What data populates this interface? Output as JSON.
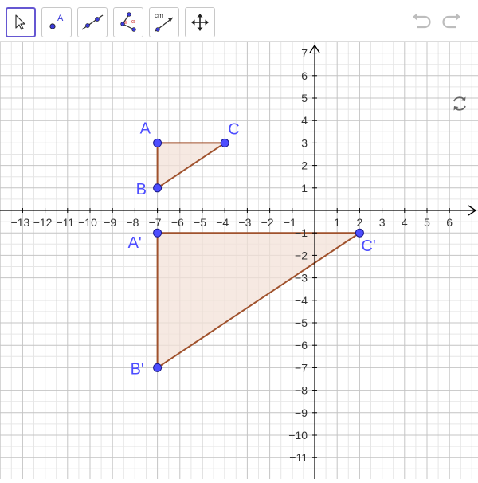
{
  "toolbar": {
    "tools": [
      {
        "icon": "move-arrow-icon",
        "active": true
      },
      {
        "icon": "point-icon",
        "label": "A"
      },
      {
        "icon": "line-icon"
      },
      {
        "icon": "angle-icon",
        "label": "α"
      },
      {
        "icon": "distance-icon",
        "label": "cm"
      },
      {
        "icon": "move-graphics-view-icon"
      }
    ],
    "undo_icon": "undo-icon",
    "redo_icon": "redo-icon"
  },
  "graph": {
    "x_tick_labels": [
      "−13",
      "−12",
      "−11",
      "−10",
      "−9",
      "−8",
      "−7",
      "−6",
      "−5",
      "−4",
      "−3",
      "−2",
      "−1",
      "1",
      "2",
      "3",
      "4",
      "5",
      "6"
    ],
    "y_tick_labels": [
      "7",
      "6",
      "5",
      "4",
      "3",
      "2",
      "1",
      "−1",
      "−2",
      "−3",
      "−4",
      "−5",
      "−6",
      "−7",
      "−8",
      "−9",
      "−10",
      "−11"
    ],
    "colors": {
      "point": "#4d4dff",
      "polygon_stroke": "#a0522d",
      "polygon_fill": "#f3e2d8",
      "label": "#4d4dff",
      "grid": "#c0c0c0",
      "axis": "#000000"
    },
    "points": [
      {
        "label": "A",
        "x": -7,
        "y": 3
      },
      {
        "label": "B",
        "x": -7,
        "y": 1
      },
      {
        "label": "C",
        "x": -4,
        "y": 3
      },
      {
        "label": "A'",
        "x": -7,
        "y": -1
      },
      {
        "label": "B'",
        "x": -7,
        "y": -7
      },
      {
        "label": "C'",
        "x": 2,
        "y": -1
      }
    ],
    "polygons": [
      {
        "name": "triangle ABC",
        "vertices": [
          "A",
          "B",
          "C"
        ]
      },
      {
        "name": "triangle A'B'C'",
        "vertices": [
          "A'",
          "B'",
          "C'"
        ]
      }
    ]
  },
  "refresh_icon": "refresh-icon"
}
